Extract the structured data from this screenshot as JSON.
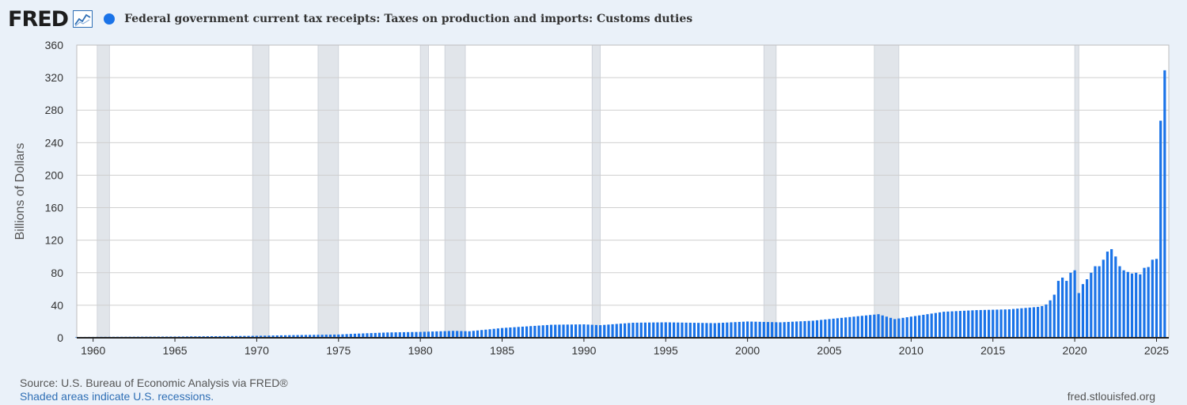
{
  "header": {
    "logo_text": "FRED",
    "logo_icon": "line-chart-icon",
    "series_title": "Federal government current tax receipts: Taxes on production and imports: Customs duties"
  },
  "footer": {
    "source": "Source: U.S. Bureau of Economic Analysis via FRED®",
    "recession_note": "Shaded areas indicate U.S. recessions.",
    "site": "fred.stlouisfed.org"
  },
  "colors": {
    "series": "#1a73e8",
    "recession": "#e1e5ea",
    "background": "#eaf1f9",
    "plot": "#ffffff",
    "grid": "#cfcfcf"
  },
  "chart_data": {
    "type": "bar",
    "title": "Federal government current tax receipts: Taxes on production and imports: Customs duties",
    "xlabel": "",
    "ylabel": "Billions of Dollars",
    "xlim": [
      1959.0,
      2025.75
    ],
    "ylim": [
      0,
      360
    ],
    "yticks": [
      0,
      40,
      80,
      120,
      160,
      200,
      240,
      280,
      320,
      360
    ],
    "xticks": [
      1960,
      1965,
      1970,
      1975,
      1980,
      1985,
      1990,
      1995,
      2000,
      2005,
      2010,
      2015,
      2020,
      2025
    ],
    "grid": true,
    "legend": "top-left",
    "frequency": "quarterly",
    "recessions": [
      [
        1960.25,
        1961.0
      ],
      [
        1969.75,
        1970.75
      ],
      [
        1973.75,
        1975.0
      ],
      [
        1980.0,
        1980.5
      ],
      [
        1981.5,
        1982.75
      ],
      [
        1990.5,
        1991.0
      ],
      [
        2001.0,
        2001.75
      ],
      [
        2007.75,
        2009.25
      ],
      [
        2020.0,
        2020.25
      ]
    ],
    "anchors": [
      [
        1959.0,
        1.0
      ],
      [
        1965.0,
        1.5
      ],
      [
        1970.0,
        2.4
      ],
      [
        1972.0,
        3.2
      ],
      [
        1975.0,
        4.0
      ],
      [
        1976.0,
        5.0
      ],
      [
        1978.0,
        6.5
      ],
      [
        1980.0,
        7.2
      ],
      [
        1982.0,
        8.5
      ],
      [
        1983.0,
        8.0
      ],
      [
        1985.0,
        12.0
      ],
      [
        1988.0,
        16.0
      ],
      [
        1990.0,
        16.5
      ],
      [
        1991.0,
        15.5
      ],
      [
        1993.0,
        18.5
      ],
      [
        1995.0,
        19.0
      ],
      [
        1998.0,
        18.0
      ],
      [
        2000.0,
        20.0
      ],
      [
        2002.0,
        19.0
      ],
      [
        2004.0,
        21.0
      ],
      [
        2006.0,
        25.0
      ],
      [
        2008.0,
        29.0
      ],
      [
        2009.0,
        23.0
      ],
      [
        2010.0,
        26.0
      ],
      [
        2012.0,
        32.0
      ],
      [
        2014.0,
        34.0
      ],
      [
        2016.0,
        35.0
      ],
      [
        2017.75,
        38.0
      ]
    ],
    "points": [
      [
        2018.0,
        39.0
      ],
      [
        2018.25,
        41.0
      ],
      [
        2018.5,
        46.0
      ],
      [
        2018.75,
        53.0
      ],
      [
        2019.0,
        70.0
      ],
      [
        2019.25,
        74.0
      ],
      [
        2019.5,
        70.0
      ],
      [
        2019.75,
        80.0
      ],
      [
        2020.0,
        83.0
      ],
      [
        2020.25,
        55.0
      ],
      [
        2020.5,
        66.0
      ],
      [
        2020.75,
        72.0
      ],
      [
        2021.0,
        80.0
      ],
      [
        2021.25,
        88.0
      ],
      [
        2021.5,
        88.0
      ],
      [
        2021.75,
        96.0
      ],
      [
        2022.0,
        106.0
      ],
      [
        2022.25,
        109.0
      ],
      [
        2022.5,
        100.0
      ],
      [
        2022.75,
        88.0
      ],
      [
        2023.0,
        83.0
      ],
      [
        2023.25,
        81.0
      ],
      [
        2023.5,
        79.0
      ],
      [
        2023.75,
        80.0
      ],
      [
        2024.0,
        78.0
      ],
      [
        2024.25,
        86.0
      ],
      [
        2024.5,
        87.0
      ],
      [
        2024.75,
        96.0
      ],
      [
        2025.0,
        97.0
      ],
      [
        2025.25,
        267.0
      ],
      [
        2025.5,
        329.0
      ]
    ]
  }
}
